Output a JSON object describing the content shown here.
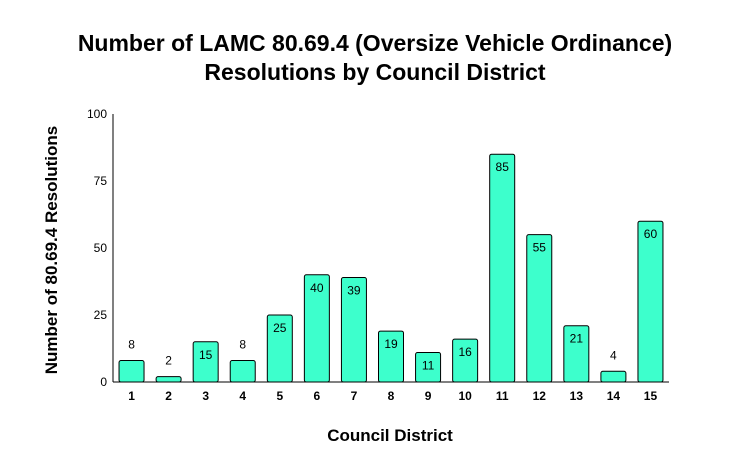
{
  "chart_data": {
    "type": "bar",
    "title_lines": [
      "Number of LAMC 80.69.4 (Oversize Vehicle Ordinance)",
      "Resolutions by Council District"
    ],
    "xlabel": "Council District",
    "ylabel": "Number of 80.69.4 Resolutions",
    "categories": [
      "1",
      "2",
      "3",
      "4",
      "5",
      "6",
      "7",
      "8",
      "9",
      "10",
      "11",
      "12",
      "13",
      "14",
      "15"
    ],
    "values": [
      8,
      2,
      15,
      8,
      25,
      40,
      39,
      19,
      11,
      16,
      85,
      55,
      21,
      4,
      60
    ],
    "ylim": [
      0,
      100
    ],
    "yticks": [
      0,
      25,
      50,
      75,
      100
    ],
    "bar_color": "#3dffcc",
    "bar_stroke": "#000000",
    "grid": false,
    "legend": "none"
  }
}
